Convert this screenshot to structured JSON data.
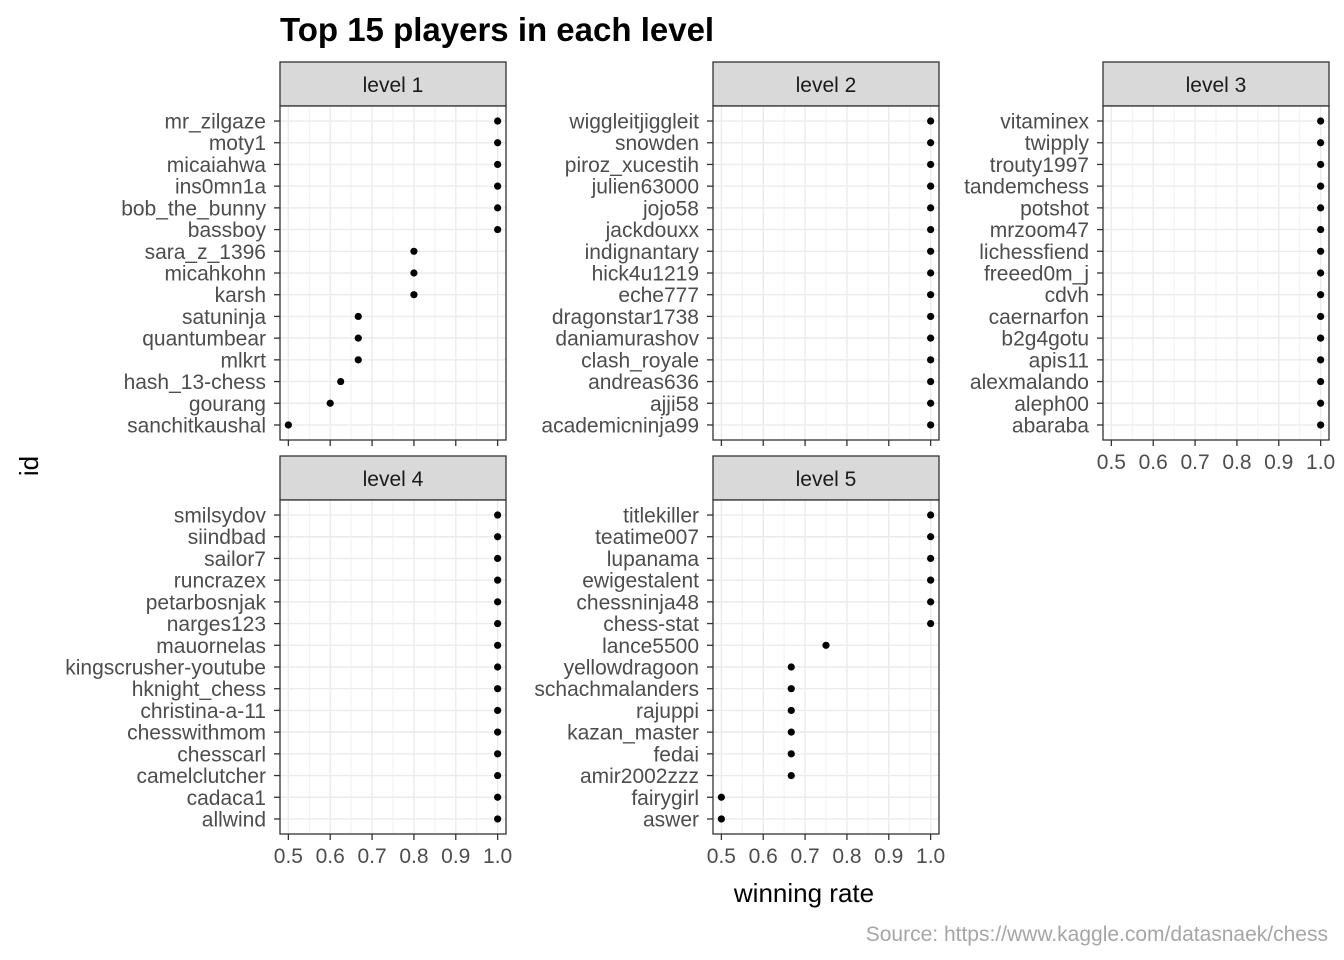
{
  "chart_data": {
    "type": "scatter",
    "title": "Top 15 players in each level",
    "xlabel": "winning rate",
    "ylabel": "id",
    "caption": "Source: https://www.kaggle.com/datasnaek/chess",
    "xlim": [
      0.48,
      1.02
    ],
    "xticks": [
      "0.5",
      "0.6",
      "0.7",
      "0.8",
      "0.9",
      "1.0"
    ],
    "xtick_values": [
      0.5,
      0.6,
      0.7,
      0.8,
      0.9,
      1.0
    ],
    "grid": true,
    "point_color": "#000000",
    "strip_color": "#d9d9d9",
    "panels": [
      {
        "label": "level 1",
        "ids": [
          "mr_zilgaze",
          "moty1",
          "micaiahwa",
          "ins0mn1a",
          "bob_the_bunny",
          "bassboy",
          "sara_z_1396",
          "micahkohn",
          "karsh",
          "satuninja",
          "quantumbear",
          "mlkrt",
          "hash_13-chess",
          "gourang",
          "sanchitkaushal"
        ],
        "values": [
          1.0,
          1.0,
          1.0,
          1.0,
          1.0,
          1.0,
          0.8,
          0.8,
          0.8,
          0.667,
          0.667,
          0.667,
          0.625,
          0.6,
          0.5
        ]
      },
      {
        "label": "level 2",
        "ids": [
          "wiggleitjiggleit",
          "snowden",
          "piroz_xucestih",
          "julien63000",
          "jojo58",
          "jackdouxx",
          "indignantary",
          "hick4u1219",
          "eche777",
          "dragonstar1738",
          "daniamurashov",
          "clash_royale",
          "andreas636",
          "ajji58",
          "academicninja99"
        ],
        "values": [
          1.0,
          1.0,
          1.0,
          1.0,
          1.0,
          1.0,
          1.0,
          1.0,
          1.0,
          1.0,
          1.0,
          1.0,
          1.0,
          1.0,
          1.0
        ]
      },
      {
        "label": "level 3",
        "ids": [
          "vitaminex",
          "twipply",
          "trouty1997",
          "tandemchess",
          "potshot",
          "mrzoom47",
          "lichessfiend",
          "freeed0m_j",
          "cdvh",
          "caernarfon",
          "b2g4gotu",
          "apis11",
          "alexmalando",
          "aleph00",
          "abaraba"
        ],
        "values": [
          1.0,
          1.0,
          1.0,
          1.0,
          1.0,
          1.0,
          1.0,
          1.0,
          1.0,
          1.0,
          1.0,
          1.0,
          1.0,
          1.0,
          1.0
        ]
      },
      {
        "label": "level 4",
        "ids": [
          "smilsydov",
          "siindbad",
          "sailor7",
          "runcrazex",
          "petarbosnjak",
          "narges123",
          "mauornelas",
          "kingscrusher-youtube",
          "hknight_chess",
          "christina-a-11",
          "chesswithmom",
          "chesscarl",
          "camelclutcher",
          "cadaca1",
          "allwind"
        ],
        "values": [
          1.0,
          1.0,
          1.0,
          1.0,
          1.0,
          1.0,
          1.0,
          1.0,
          1.0,
          1.0,
          1.0,
          1.0,
          1.0,
          1.0,
          1.0
        ]
      },
      {
        "label": "level 5",
        "ids": [
          "titlekiller",
          "teatime007",
          "lupanama",
          "ewigestalent",
          "chessninja48",
          "chess-stat",
          "lance5500",
          "yellowdragoon",
          "schachmalanders",
          "rajuppi",
          "kazan_master",
          "fedai",
          "amir2002zzz",
          "fairygirl",
          "aswer"
        ],
        "values": [
          1.0,
          1.0,
          1.0,
          1.0,
          1.0,
          1.0,
          0.75,
          0.667,
          0.667,
          0.667,
          0.667,
          0.667,
          0.667,
          0.5,
          0.5
        ]
      }
    ]
  }
}
